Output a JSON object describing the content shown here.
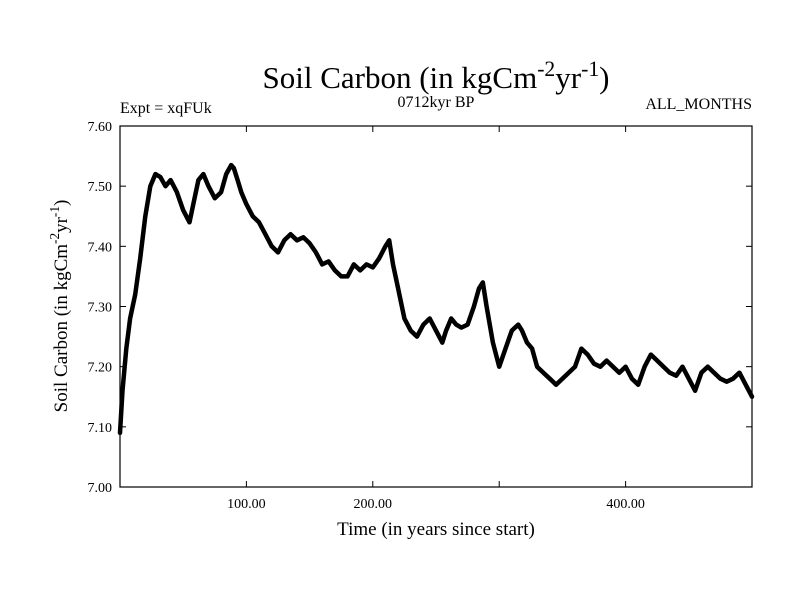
{
  "chart_data": {
    "type": "line",
    "title": {
      "main": "Soil Carbon (in kgCm",
      "exp1": "-2",
      "mid": "yr",
      "exp2": "-1",
      "end": ")"
    },
    "subtitle_left": "Expt = xqFUk",
    "subtitle_center": "0712kyr BP",
    "subtitle_right": "ALL_MONTHS",
    "xlabel": "Time (in years since start)",
    "ylabel": {
      "main": "Soil Carbon (in kgCm",
      "exp1": "-2",
      "mid": "yr",
      "exp2": "-1",
      "end": ")"
    },
    "xlim": [
      0,
      500
    ],
    "ylim": [
      7.0,
      7.6
    ],
    "x_ticks": [
      100,
      200,
      300,
      400
    ],
    "x_tick_labels": [
      "100.00",
      "200.00",
      "400.00"
    ],
    "x_tick_label_values": [
      100,
      200,
      400
    ],
    "y_ticks": [
      7.0,
      7.1,
      7.2,
      7.3,
      7.4,
      7.5,
      7.6
    ],
    "y_tick_labels": [
      "7.00",
      "7.10",
      "7.20",
      "7.30",
      "7.40",
      "7.50",
      "7.60"
    ],
    "line_color": "#000000",
    "series": [
      {
        "name": "Soil Carbon",
        "x": [
          0,
          2,
          5,
          8,
          12,
          16,
          20,
          24,
          28,
          32,
          36,
          40,
          45,
          50,
          55,
          58,
          62,
          66,
          70,
          75,
          80,
          84,
          88,
          90,
          93,
          96,
          100,
          105,
          110,
          115,
          120,
          125,
          130,
          135,
          140,
          145,
          150,
          155,
          160,
          165,
          170,
          175,
          180,
          185,
          190,
          195,
          200,
          205,
          210,
          213,
          216,
          220,
          225,
          230,
          235,
          240,
          245,
          250,
          255,
          258,
          262,
          266,
          270,
          275,
          280,
          284,
          287,
          290,
          295,
          300,
          305,
          310,
          315,
          318,
          322,
          326,
          330,
          335,
          340,
          345,
          350,
          355,
          360,
          365,
          370,
          375,
          380,
          385,
          390,
          395,
          400,
          405,
          410,
          415,
          420,
          425,
          430,
          435,
          440,
          445,
          450,
          455,
          460,
          465,
          470,
          475,
          480,
          485,
          490,
          495,
          500
        ],
        "values": [
          7.09,
          7.16,
          7.23,
          7.28,
          7.32,
          7.38,
          7.45,
          7.5,
          7.52,
          7.515,
          7.5,
          7.51,
          7.49,
          7.46,
          7.44,
          7.47,
          7.51,
          7.52,
          7.5,
          7.48,
          7.49,
          7.52,
          7.535,
          7.53,
          7.51,
          7.49,
          7.47,
          7.45,
          7.44,
          7.42,
          7.4,
          7.39,
          7.41,
          7.42,
          7.41,
          7.415,
          7.405,
          7.39,
          7.37,
          7.375,
          7.36,
          7.35,
          7.35,
          7.37,
          7.36,
          7.37,
          7.365,
          7.38,
          7.4,
          7.41,
          7.37,
          7.33,
          7.28,
          7.26,
          7.25,
          7.27,
          7.28,
          7.26,
          7.24,
          7.26,
          7.28,
          7.27,
          7.265,
          7.27,
          7.3,
          7.33,
          7.34,
          7.3,
          7.24,
          7.2,
          7.23,
          7.26,
          7.27,
          7.26,
          7.24,
          7.23,
          7.2,
          7.19,
          7.18,
          7.17,
          7.18,
          7.19,
          7.2,
          7.23,
          7.22,
          7.205,
          7.2,
          7.21,
          7.2,
          7.19,
          7.2,
          7.18,
          7.17,
          7.2,
          7.22,
          7.21,
          7.2,
          7.19,
          7.185,
          7.2,
          7.18,
          7.16,
          7.19,
          7.2,
          7.19,
          7.18,
          7.175,
          7.18,
          7.19,
          7.17,
          7.15
        ]
      }
    ]
  }
}
